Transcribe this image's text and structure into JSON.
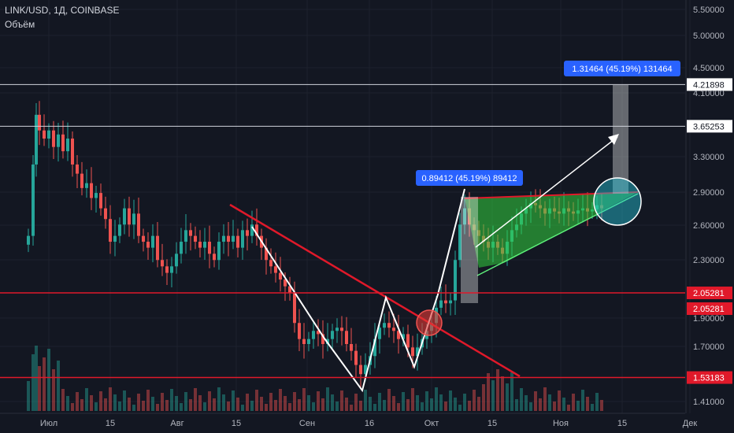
{
  "header": {
    "symbol": "LINK/USD, 1Д, COINBASE",
    "volume_label": "Объём"
  },
  "colors": {
    "background": "#131722",
    "up": "#26a69a",
    "down": "#ef5350",
    "grid": "#1e222d",
    "axis_text": "#b2b5be",
    "support_line": "#e0192a",
    "white_line": "#ffffff",
    "green_fill": "#33d13e",
    "measure_label": "#2962ff"
  },
  "chart_data": {
    "type": "candlestick",
    "symbol": "LINK/USD",
    "interval": "1D",
    "exchange": "COINBASE",
    "y_axis": {
      "scale": "log",
      "range": [
        1.38,
        5.6
      ],
      "ticks": [
        "5.50000",
        "5.00000",
        "4.50000",
        "4.10000",
        "3.30000",
        "2.90000",
        "2.60000",
        "2.30000",
        "1.90000",
        "1.70000",
        "1.41000"
      ]
    },
    "x_axis": {
      "ticks": [
        "Июл",
        "15",
        "Авг",
        "15",
        "Сен",
        "16",
        "Окт",
        "15",
        "Ноя",
        "15",
        "Дек"
      ]
    },
    "price_badges": [
      {
        "value": "4.21898",
        "style": "white"
      },
      {
        "value": "3.65253",
        "style": "white"
      },
      {
        "value": "2.05281",
        "style": "red"
      },
      {
        "value": "2.05281",
        "style": "red"
      },
      {
        "value": "1.53183",
        "style": "red"
      }
    ],
    "measure_labels": [
      {
        "text": "1.31464 (45.19%) 131464"
      },
      {
        "text": "0.89412 (45.19%) 89412"
      }
    ],
    "horizontal_lines": [
      {
        "price": 4.21898,
        "color": "white"
      },
      {
        "price": 3.65253,
        "color": "white"
      },
      {
        "price": 2.05281,
        "color": "red"
      },
      {
        "price": 1.53183,
        "color": "red"
      }
    ]
  }
}
